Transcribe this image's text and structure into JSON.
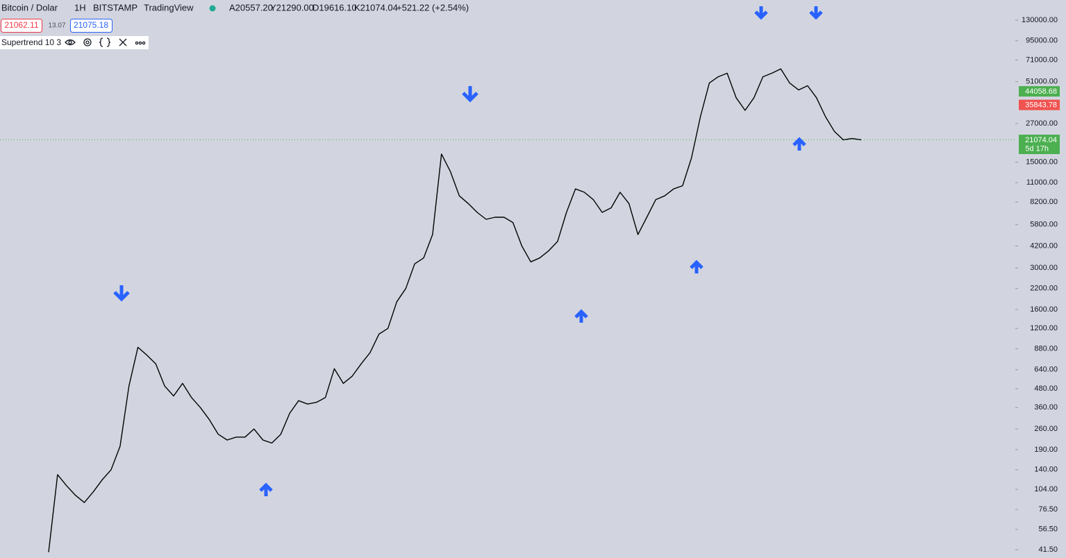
{
  "header": {
    "symbol": "Bitcoin / Dolar",
    "interval": "1H",
    "exchange": "BITSTAMP",
    "source": "TradingView",
    "ohlc": [
      "A20557.20",
      "Y21290.00",
      "D19616.10",
      "K21074.04"
    ],
    "change": "+521.22 (+2.54%)",
    "sell": "21062.11",
    "spread": "13.07",
    "buy": "21075.18",
    "indicator": "Supertrend 10 3"
  },
  "chart_data": {
    "type": "line",
    "log_scale": true,
    "color": "#000000",
    "categories": [
      null,
      null,
      null,
      null,
      null,
      null,
      null,
      null,
      null,
      null,
      null,
      null,
      null,
      null,
      null,
      null,
      null,
      null,
      null,
      null,
      null,
      null,
      null,
      null,
      null,
      null,
      null,
      null,
      null,
      null,
      null,
      null,
      null,
      null,
      null,
      null,
      null,
      null,
      null,
      null,
      null,
      null,
      null,
      null,
      null,
      null,
      null,
      null,
      null,
      null,
      null,
      null,
      null,
      null,
      null,
      null,
      null,
      null,
      null,
      null,
      null,
      null,
      null,
      null,
      null,
      null,
      null,
      null,
      null,
      null,
      null,
      null,
      null,
      null,
      null,
      null,
      null,
      null,
      null,
      null,
      null,
      null,
      null,
      null,
      null,
      null,
      null,
      null,
      null,
      null,
      null,
      null
    ],
    "values": [
      40,
      130,
      110,
      95,
      85,
      100,
      120,
      140,
      200,
      500,
      900,
      800,
      700,
      500,
      430,
      520,
      420,
      360,
      300,
      240,
      220,
      230,
      230,
      260,
      220,
      210,
      240,
      330,
      400,
      380,
      390,
      420,
      650,
      520,
      580,
      700,
      830,
      1100,
      1200,
      1800,
      2200,
      3200,
      3500,
      5000,
      17000,
      13000,
      9000,
      8000,
      7000,
      6300,
      6500,
      6500,
      6000,
      4200,
      3300,
      3500,
      3900,
      4500,
      7000,
      10000,
      9500,
      8500,
      7000,
      7500,
      9500,
      8000,
      5000,
      6500,
      8500,
      9000,
      10000,
      10500,
      16000,
      30000,
      50000,
      55000,
      58000,
      40000,
      33000,
      40000,
      55000,
      58000,
      62000,
      50000,
      45000,
      48000,
      40000,
      30000,
      24000,
      21074.04,
      21500,
      21074.04
    ],
    "ylim": [
      36.6,
      176600
    ],
    "yticks": [
      {
        "value": 41.5,
        "label": "41.50"
      },
      {
        "value": 56.5,
        "label": "56.50"
      },
      {
        "value": 76.5,
        "label": "76.50"
      },
      {
        "value": 104,
        "label": "104.00"
      },
      {
        "value": 140,
        "label": "140.00"
      },
      {
        "value": 190,
        "label": "190.00"
      },
      {
        "value": 260,
        "label": "260.00"
      },
      {
        "value": 360,
        "label": "360.00"
      },
      {
        "value": 480,
        "label": "480.00"
      },
      {
        "value": 640,
        "label": "640.00"
      },
      {
        "value": 880,
        "label": "880.00"
      },
      {
        "value": 1200,
        "label": "1200.00"
      },
      {
        "value": 1600,
        "label": "1600.00"
      },
      {
        "value": 2200,
        "label": "2200.00"
      },
      {
        "value": 3000,
        "label": "3000.00"
      },
      {
        "value": 4200,
        "label": "4200.00"
      },
      {
        "value": 5800,
        "label": "5800.00"
      },
      {
        "value": 8200,
        "label": "8200.00"
      },
      {
        "value": 11000,
        "label": "11000.00"
      },
      {
        "value": 15000,
        "label": "15000.00"
      },
      {
        "value": 27000,
        "label": "27000.00"
      },
      {
        "value": 51000,
        "label": "51000.00"
      },
      {
        "value": 71000,
        "label": "71000.00"
      },
      {
        "value": 95000,
        "label": "95000.00"
      },
      {
        "value": 130000,
        "label": "130000.00"
      }
    ],
    "price_tags": [
      {
        "value": 44058.68,
        "label": "44058.68",
        "color": "#4caf50"
      },
      {
        "value": 35843.78,
        "label": "35843.78",
        "color": "#f05350"
      }
    ],
    "last_price": {
      "value": 21074.04,
      "label": "21074.04",
      "countdown": "5d 17h",
      "color": "#4caf50"
    }
  }
}
